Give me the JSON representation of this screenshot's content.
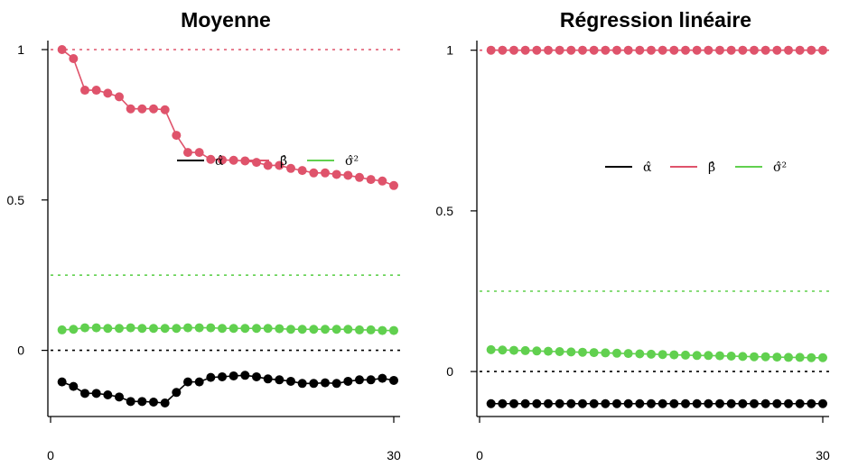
{
  "colors": {
    "alpha": "#000000",
    "beta": "#DF536B",
    "sigma2": "#61D04F"
  },
  "chart_data": [
    {
      "type": "line",
      "title": "Moyenne",
      "xlabel": "",
      "ylabel": "",
      "x": [
        1,
        2,
        3,
        4,
        5,
        6,
        7,
        8,
        9,
        10,
        11,
        12,
        13,
        14,
        15,
        16,
        17,
        18,
        19,
        20,
        21,
        22,
        23,
        24,
        25,
        26,
        27,
        28,
        29,
        30
      ],
      "xlim": [
        0,
        30
      ],
      "ylim": [
        -0.22,
        1.03
      ],
      "xticks": [
        0,
        30
      ],
      "yticks": [
        0,
        0.5,
        1
      ],
      "xtick_labels": [
        "0",
        "30"
      ],
      "ytick_labels": [
        "0",
        "0.5",
        "1"
      ],
      "legend": {
        "position": "center-right",
        "entries": [
          "α̂",
          "β̂",
          "σ̂²"
        ]
      },
      "reference_lines": [
        {
          "series": "beta",
          "y": 1
        },
        {
          "series": "sigma2",
          "y": 0.25
        },
        {
          "series": "alpha",
          "y": 0
        }
      ],
      "series": [
        {
          "key": "alpha",
          "values": [
            -0.105,
            -0.12,
            -0.143,
            -0.143,
            -0.148,
            -0.155,
            -0.17,
            -0.17,
            -0.172,
            -0.175,
            -0.14,
            -0.105,
            -0.105,
            -0.09,
            -0.088,
            -0.085,
            -0.083,
            -0.088,
            -0.095,
            -0.098,
            -0.103,
            -0.11,
            -0.11,
            -0.108,
            -0.11,
            -0.103,
            -0.098,
            -0.098,
            -0.093,
            -0.1
          ]
        },
        {
          "key": "beta",
          "values": [
            1.0,
            0.97,
            0.865,
            0.865,
            0.855,
            0.843,
            0.803,
            0.803,
            0.803,
            0.8,
            0.715,
            0.658,
            0.658,
            0.635,
            0.633,
            0.632,
            0.63,
            0.625,
            0.615,
            0.615,
            0.605,
            0.598,
            0.59,
            0.59,
            0.585,
            0.582,
            0.575,
            0.568,
            0.563,
            0.548
          ]
        },
        {
          "key": "sigma2",
          "values": [
            0.068,
            0.07,
            0.075,
            0.075,
            0.073,
            0.073,
            0.075,
            0.073,
            0.073,
            0.073,
            0.073,
            0.075,
            0.075,
            0.075,
            0.073,
            0.073,
            0.073,
            0.073,
            0.073,
            0.072,
            0.07,
            0.07,
            0.07,
            0.07,
            0.07,
            0.07,
            0.068,
            0.068,
            0.066,
            0.066
          ]
        }
      ]
    },
    {
      "type": "line",
      "title": "Régression linéaire",
      "xlabel": "",
      "ylabel": "",
      "x": [
        1,
        2,
        3,
        4,
        5,
        6,
        7,
        8,
        9,
        10,
        11,
        12,
        13,
        14,
        15,
        16,
        17,
        18,
        19,
        20,
        21,
        22,
        23,
        24,
        25,
        26,
        27,
        28,
        29,
        30
      ],
      "xlim": [
        0,
        30
      ],
      "ylim": [
        -0.14,
        1.03
      ],
      "xticks": [
        0,
        30
      ],
      "yticks": [
        0,
        0.5,
        1
      ],
      "xtick_labels": [
        "0",
        "30"
      ],
      "ytick_labels": [
        "0",
        "0.5",
        "1"
      ],
      "legend": {
        "position": "center-right",
        "entries": [
          "α̂",
          "β̂",
          "σ̂²"
        ]
      },
      "reference_lines": [
        {
          "series": "beta",
          "y": 1
        },
        {
          "series": "sigma2",
          "y": 0.25
        },
        {
          "series": "alpha",
          "y": 0
        }
      ],
      "series": [
        {
          "key": "alpha",
          "values": [
            -0.1,
            -0.1,
            -0.1,
            -0.1,
            -0.1,
            -0.1,
            -0.1,
            -0.1,
            -0.1,
            -0.1,
            -0.1,
            -0.1,
            -0.1,
            -0.1,
            -0.1,
            -0.1,
            -0.1,
            -0.1,
            -0.1,
            -0.1,
            -0.1,
            -0.1,
            -0.1,
            -0.1,
            -0.1,
            -0.1,
            -0.1,
            -0.1,
            -0.1,
            -0.1
          ]
        },
        {
          "key": "beta",
          "values": [
            1,
            1,
            1,
            1,
            1,
            1,
            1,
            1,
            1,
            1,
            1,
            1,
            1,
            1,
            1,
            1,
            1,
            1,
            1,
            1,
            1,
            1,
            1,
            1,
            1,
            1,
            1,
            1,
            1,
            1
          ]
        },
        {
          "key": "sigma2",
          "values": [
            0.068,
            0.067,
            0.066,
            0.065,
            0.064,
            0.063,
            0.062,
            0.061,
            0.06,
            0.059,
            0.058,
            0.057,
            0.056,
            0.055,
            0.054,
            0.053,
            0.052,
            0.051,
            0.05,
            0.05,
            0.049,
            0.048,
            0.047,
            0.046,
            0.046,
            0.045,
            0.044,
            0.044,
            0.043,
            0.043
          ]
        }
      ]
    }
  ]
}
